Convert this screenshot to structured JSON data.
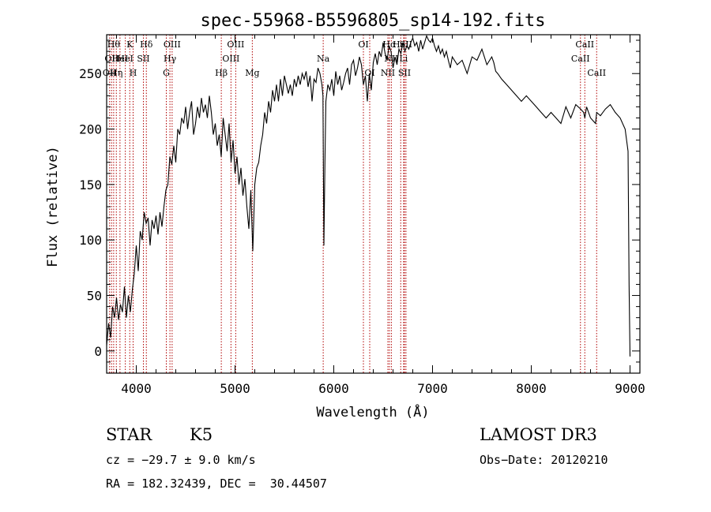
{
  "chart_data": {
    "type": "line",
    "title": "spec-55968-B5596805_sp14-192.fits",
    "xlabel": "Wavelength (Å)",
    "ylabel": "Flux (relative)",
    "xlim": [
      3700,
      9100
    ],
    "ylim": [
      -20,
      285
    ],
    "xticks": [
      4000,
      5000,
      6000,
      7000,
      8000,
      9000
    ],
    "yticks": [
      0,
      50,
      100,
      150,
      200,
      250
    ],
    "line_color": "#000000",
    "marker_color": "#b00000",
    "series": [
      {
        "x": [
          3700,
          3720,
          3740,
          3760,
          3780,
          3800,
          3820,
          3840,
          3860,
          3880,
          3900,
          3920,
          3940,
          3960,
          3980,
          4000,
          4020,
          4040,
          4060,
          4080,
          4100,
          4120,
          4140,
          4160,
          4180,
          4200,
          4220,
          4240,
          4260,
          4280,
          4300,
          4320,
          4340,
          4360,
          4380,
          4400,
          4420,
          4440,
          4460,
          4480,
          4500,
          4520,
          4540,
          4560,
          4580,
          4600,
          4620,
          4640,
          4660,
          4680,
          4700,
          4720,
          4740,
          4760,
          4780,
          4800,
          4820,
          4840,
          4860,
          4880,
          4900,
          4920,
          4940,
          4960,
          4980,
          5000,
          5020,
          5040,
          5060,
          5080,
          5100,
          5120,
          5140,
          5160,
          5180,
          5200,
          5220,
          5240,
          5260,
          5280,
          5300,
          5320,
          5340,
          5360,
          5380,
          5400,
          5420,
          5440,
          5460,
          5480,
          5500,
          5520,
          5540,
          5560,
          5580,
          5600,
          5620,
          5640,
          5660,
          5680,
          5700,
          5720,
          5740,
          5760,
          5780,
          5800,
          5820,
          5840,
          5860,
          5880,
          5890,
          5895,
          5900,
          5910,
          5920,
          5940,
          5960,
          5980,
          6000,
          6020,
          6040,
          6060,
          6080,
          6100,
          6120,
          6140,
          6160,
          6180,
          6200,
          6220,
          6240,
          6260,
          6280,
          6300,
          6320,
          6340,
          6360,
          6380,
          6400,
          6420,
          6440,
          6460,
          6480,
          6500,
          6520,
          6540,
          6560,
          6580,
          6600,
          6620,
          6640,
          6660,
          6680,
          6700,
          6720,
          6740,
          6760,
          6780,
          6800,
          6820,
          6840,
          6860,
          6880,
          6900,
          6920,
          6940,
          6960,
          6980,
          7000,
          7020,
          7040,
          7060,
          7080,
          7100,
          7120,
          7140,
          7160,
          7180,
          7200,
          7250,
          7300,
          7350,
          7400,
          7450,
          7500,
          7550,
          7600,
          7620,
          7640,
          7660,
          7700,
          7750,
          7800,
          7850,
          7900,
          7950,
          8000,
          8050,
          8100,
          8150,
          8200,
          8250,
          8300,
          8350,
          8400,
          8450,
          8500,
          8530,
          8542,
          8560,
          8600,
          8650,
          8662,
          8700,
          8750,
          8800,
          8850,
          8900,
          8950,
          8980,
          8990,
          9000
        ],
        "y": [
          5,
          25,
          12,
          40,
          30,
          48,
          28,
          42,
          35,
          58,
          30,
          50,
          35,
          55,
          70,
          95,
          72,
          108,
          100,
          125,
          115,
          120,
          95,
          118,
          110,
          122,
          105,
          125,
          112,
          130,
          145,
          150,
          175,
          168,
          185,
          170,
          200,
          195,
          210,
          205,
          220,
          200,
          215,
          225,
          195,
          205,
          220,
          210,
          228,
          215,
          222,
          210,
          230,
          215,
          195,
          205,
          185,
          195,
          175,
          210,
          195,
          180,
          205,
          170,
          190,
          160,
          175,
          150,
          165,
          140,
          155,
          130,
          110,
          145,
          90,
          150,
          165,
          170,
          185,
          195,
          215,
          205,
          225,
          215,
          235,
          225,
          240,
          225,
          245,
          230,
          248,
          240,
          232,
          240,
          230,
          245,
          238,
          248,
          240,
          250,
          245,
          252,
          238,
          248,
          225,
          245,
          242,
          255,
          250,
          240,
          230,
          160,
          95,
          170,
          225,
          240,
          235,
          245,
          230,
          252,
          240,
          248,
          235,
          242,
          250,
          255,
          240,
          258,
          262,
          248,
          255,
          265,
          258,
          240,
          248,
          225,
          250,
          235,
          260,
          268,
          258,
          270,
          265,
          278,
          268,
          262,
          275,
          270,
          255,
          265,
          258,
          272,
          268,
          278,
          270,
          275,
          272,
          278,
          282,
          275,
          278,
          270,
          280,
          272,
          278,
          284,
          280,
          278,
          282,
          275,
          270,
          275,
          268,
          272,
          265,
          270,
          262,
          255,
          265,
          258,
          262,
          250,
          265,
          262,
          272,
          258,
          265,
          260,
          252,
          250,
          245,
          240,
          235,
          230,
          225,
          230,
          225,
          220,
          215,
          210,
          215,
          210,
          205,
          220,
          210,
          222,
          218,
          215,
          210,
          220,
          210,
          205,
          215,
          212,
          218,
          222,
          215,
          210,
          200,
          180,
          60,
          -5
        ]
      }
    ],
    "lines": [
      {
        "x": 3730,
        "label": "OII",
        "row": 2
      },
      {
        "x": 3750,
        "label": "OII",
        "row": 1
      },
      {
        "x": 3771,
        "label": "Hθ",
        "row": 0
      },
      {
        "x": 3798,
        "label": "Hη",
        "row": 2
      },
      {
        "x": 3835,
        "label": "HeI",
        "row": 1
      },
      {
        "x": 3889,
        "label": "HeI",
        "row": 1
      },
      {
        "x": 3934,
        "label": "K",
        "row": 0
      },
      {
        "x": 3968,
        "label": "H",
        "row": 2
      },
      {
        "x": 4072,
        "label": "SII",
        "row": 1
      },
      {
        "x": 4102,
        "label": "Hδ",
        "row": 0
      },
      {
        "x": 4304,
        "label": "G",
        "row": 2
      },
      {
        "x": 4341,
        "label": "Hγ",
        "row": 1
      },
      {
        "x": 4363,
        "label": "OIII",
        "row": 0
      },
      {
        "x": 4861,
        "label": "Hβ",
        "row": 2
      },
      {
        "x": 4959,
        "label": "OIII",
        "row": 1
      },
      {
        "x": 5007,
        "label": "OIII",
        "row": 0
      },
      {
        "x": 5175,
        "label": "Mg",
        "row": 2
      },
      {
        "x": 5893,
        "label": "Na",
        "row": 1
      },
      {
        "x": 6300,
        "label": "OI",
        "row": 0
      },
      {
        "x": 6364,
        "label": "OI",
        "row": 2
      },
      {
        "x": 6548,
        "label": "NII",
        "row": 2
      },
      {
        "x": 6563,
        "label": "Hα",
        "row": 0
      },
      {
        "x": 6583,
        "label": "NII",
        "row": 1
      },
      {
        "x": 6678,
        "label": "HeI",
        "row": 0
      },
      {
        "x": 6707,
        "label": "Li",
        "row": 1
      },
      {
        "x": 6716,
        "label": "SII",
        "row": 2
      },
      {
        "x": 6731,
        "label": "SII",
        "row": 0
      },
      {
        "x": 8498,
        "label": "CaII",
        "row": 1
      },
      {
        "x": 8542,
        "label": "CaII",
        "row": 0
      },
      {
        "x": 8662,
        "label": "CaII",
        "row": 2
      }
    ]
  },
  "info": {
    "class_label": "STAR",
    "subclass": "K5",
    "survey": "LAMOST DR3",
    "cz": "cz = −29.7 ± 9.0 km/s",
    "obs_date": "Obs−Date: 20120210",
    "coords": "RA = 182.32439, DEC =  30.44507"
  }
}
